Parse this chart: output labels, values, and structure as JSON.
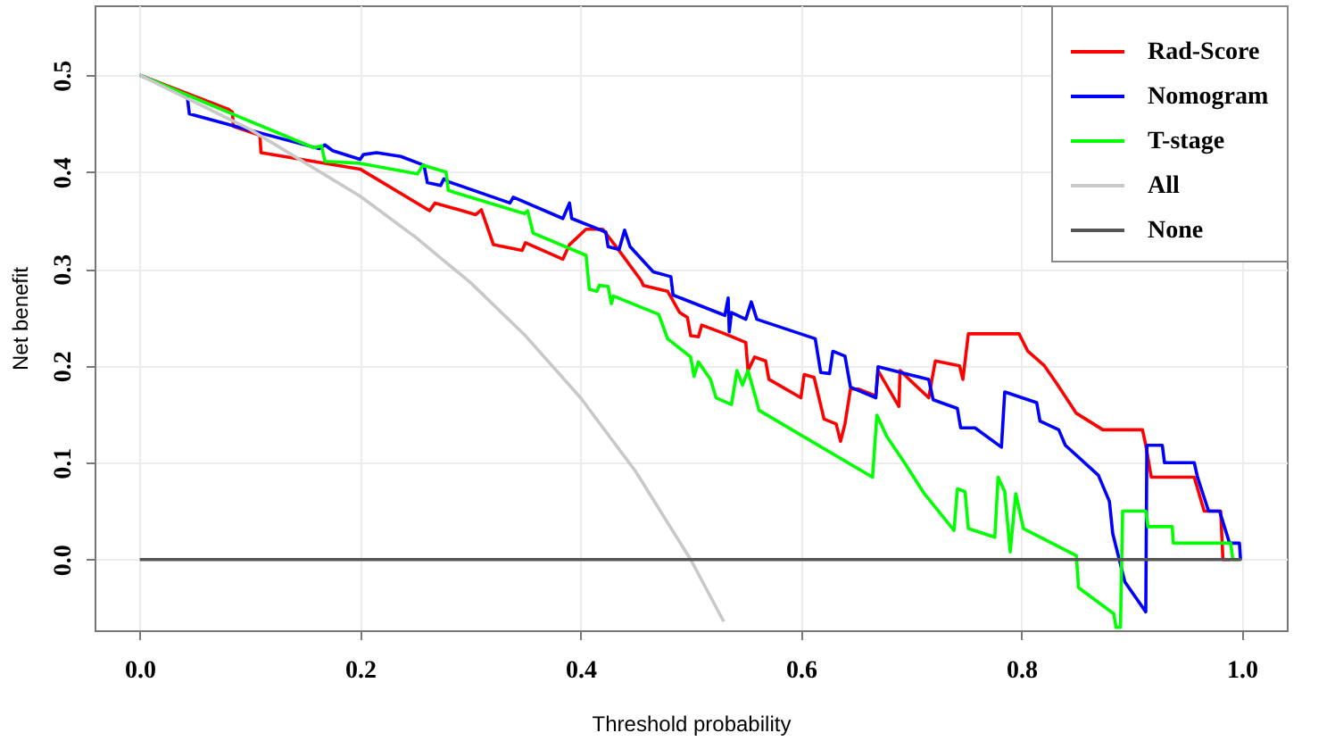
{
  "chart_data": {
    "type": "line",
    "xlabel": "Threshold probability",
    "ylabel": "Net benefit",
    "xlim": [
      -0.041,
      1.041
    ],
    "ylim": [
      -0.073,
      0.572
    ],
    "xticks": [
      {
        "value": 0,
        "label": "0.0"
      },
      0.2,
      0.4,
      0.6,
      0.8,
      {
        "value": 1,
        "label": "1.0"
      }
    ],
    "yticks": [
      {
        "value": 0,
        "label": "0.0"
      },
      0.1,
      0.2,
      0.3,
      0.4,
      0.5
    ],
    "grid": true,
    "legend": "top right",
    "line_style": "solid",
    "marker": "none",
    "series": [
      {
        "name": "Rad-Score",
        "color": "#ff0000",
        "x": [
          0,
          0.08,
          0.084,
          0.085,
          0.109,
          0.11,
          0.2,
          0.263,
          0.268,
          0.305,
          0.31,
          0.321,
          0.347,
          0.35,
          0.384,
          0.39,
          0.405,
          0.42,
          0.435,
          0.455,
          0.457,
          0.479,
          0.49,
          0.497,
          0.5,
          0.507,
          0.51,
          0.531,
          0.55,
          0.552,
          0.558,
          0.568,
          0.571,
          0.6,
          0.603,
          0.612,
          0.621,
          0.632,
          0.636,
          0.64,
          0.645,
          0.652,
          0.668,
          0.67,
          0.689,
          0.69,
          0.716,
          0.722,
          0.744,
          0.747,
          0.752,
          0.798,
          0.806,
          0.821,
          0.832,
          0.85,
          0.874,
          0.91,
          0.913,
          0.918,
          0.957,
          0.966,
          0.981,
          0.983,
          0.99
        ],
        "values": [
          0.5,
          0.465,
          0.462,
          0.447,
          0.438,
          0.42,
          0.403,
          0.36,
          0.368,
          0.356,
          0.361,
          0.325,
          0.319,
          0.327,
          0.31,
          0.325,
          0.341,
          0.341,
          0.319,
          0.288,
          0.283,
          0.277,
          0.255,
          0.25,
          0.231,
          0.23,
          0.242,
          0.233,
          0.224,
          0.195,
          0.209,
          0.205,
          0.186,
          0.167,
          0.191,
          0.188,
          0.145,
          0.14,
          0.122,
          0.14,
          0.176,
          0.176,
          0.169,
          0.195,
          0.158,
          0.195,
          0.167,
          0.205,
          0.2,
          0.186,
          0.233,
          0.233,
          0.215,
          0.2,
          0.182,
          0.151,
          0.134,
          0.134,
          0.118,
          0.085,
          0.085,
          0.05,
          0.05,
          0,
          0
        ]
      },
      {
        "name": "Nomogram",
        "color": "#0000ff",
        "x": [
          0,
          0.043,
          0.045,
          0.163,
          0.168,
          0.175,
          0.2,
          0.203,
          0.215,
          0.237,
          0.258,
          0.261,
          0.273,
          0.276,
          0.28,
          0.336,
          0.339,
          0.384,
          0.39,
          0.392,
          0.423,
          0.425,
          0.435,
          0.44,
          0.445,
          0.466,
          0.482,
          0.484,
          0.531,
          0.534,
          0.535,
          0.537,
          0.55,
          0.555,
          0.56,
          0.613,
          0.618,
          0.626,
          0.629,
          0.64,
          0.645,
          0.668,
          0.67,
          0.716,
          0.72,
          0.742,
          0.745,
          0.758,
          0.782,
          0.785,
          0.814,
          0.817,
          0.834,
          0.84,
          0.87,
          0.88,
          0.883,
          0.894,
          0.913,
          0.914,
          0.928,
          0.93,
          0.957,
          0.96,
          0.97,
          0.98,
          0.989,
          0.998,
          0.999
        ],
        "values": [
          0.5,
          0.479,
          0.46,
          0.424,
          0.428,
          0.422,
          0.413,
          0.418,
          0.42,
          0.416,
          0.407,
          0.389,
          0.386,
          0.393,
          0.39,
          0.368,
          0.374,
          0.352,
          0.368,
          0.352,
          0.338,
          0.323,
          0.32,
          0.34,
          0.323,
          0.297,
          0.292,
          0.273,
          0.252,
          0.27,
          0.235,
          0.255,
          0.248,
          0.266,
          0.248,
          0.228,
          0.193,
          0.192,
          0.215,
          0.21,
          0.178,
          0.167,
          0.199,
          0.186,
          0.165,
          0.156,
          0.136,
          0.136,
          0.116,
          0.173,
          0.162,
          0.143,
          0.134,
          0.118,
          0.087,
          0.06,
          0.027,
          -0.023,
          -0.054,
          0.118,
          0.118,
          0.1,
          0.1,
          0.085,
          0.05,
          0.05,
          0.017,
          0.017,
          0
        ]
      },
      {
        "name": "T-stage",
        "color": "#00ff00",
        "x": [
          0,
          0.084,
          0.158,
          0.165,
          0.168,
          0.2,
          0.252,
          0.257,
          0.278,
          0.28,
          0.349,
          0.352,
          0.357,
          0.405,
          0.408,
          0.415,
          0.417,
          0.425,
          0.428,
          0.43,
          0.471,
          0.479,
          0.5,
          0.503,
          0.507,
          0.518,
          0.523,
          0.537,
          0.542,
          0.547,
          0.552,
          0.559,
          0.562,
          0.665,
          0.669,
          0.678,
          0.694,
          0.712,
          0.739,
          0.742,
          0.749,
          0.752,
          0.776,
          0.779,
          0.785,
          0.79,
          0.795,
          0.802,
          0.85,
          0.852,
          0.884,
          0.886,
          0.89,
          0.892,
          0.913,
          0.915,
          0.937,
          0.938,
          0.99,
          0.992,
          0.998
        ],
        "values": [
          0.5,
          0.46,
          0.425,
          0.427,
          0.411,
          0.409,
          0.398,
          0.407,
          0.4,
          0.381,
          0.357,
          0.36,
          0.337,
          0.314,
          0.279,
          0.277,
          0.283,
          0.282,
          0.264,
          0.272,
          0.253,
          0.228,
          0.209,
          0.189,
          0.204,
          0.186,
          0.167,
          0.16,
          0.195,
          0.18,
          0.195,
          0.167,
          0.154,
          0.085,
          0.149,
          0.127,
          0.1,
          0.068,
          0.03,
          0.073,
          0.07,
          0.032,
          0.023,
          0.085,
          0.07,
          0.008,
          0.068,
          0.032,
          0.004,
          -0.029,
          -0.056,
          -0.07,
          -0.07,
          0.05,
          0.05,
          0.034,
          0.034,
          0.017,
          0.017,
          0,
          0
        ]
      },
      {
        "name": "All",
        "color": "#c8c8c8",
        "x": [
          0,
          0.1,
          0.2,
          0.25,
          0.3,
          0.35,
          0.4,
          0.45,
          0.5,
          0.53
        ],
        "values": [
          0.5,
          0.444,
          0.375,
          0.333,
          0.286,
          0.231,
          0.167,
          0.091,
          0,
          -0.064
        ]
      },
      {
        "name": "None",
        "color": "#555555",
        "x": [
          0,
          1
        ],
        "values": [
          0,
          0
        ]
      }
    ]
  }
}
